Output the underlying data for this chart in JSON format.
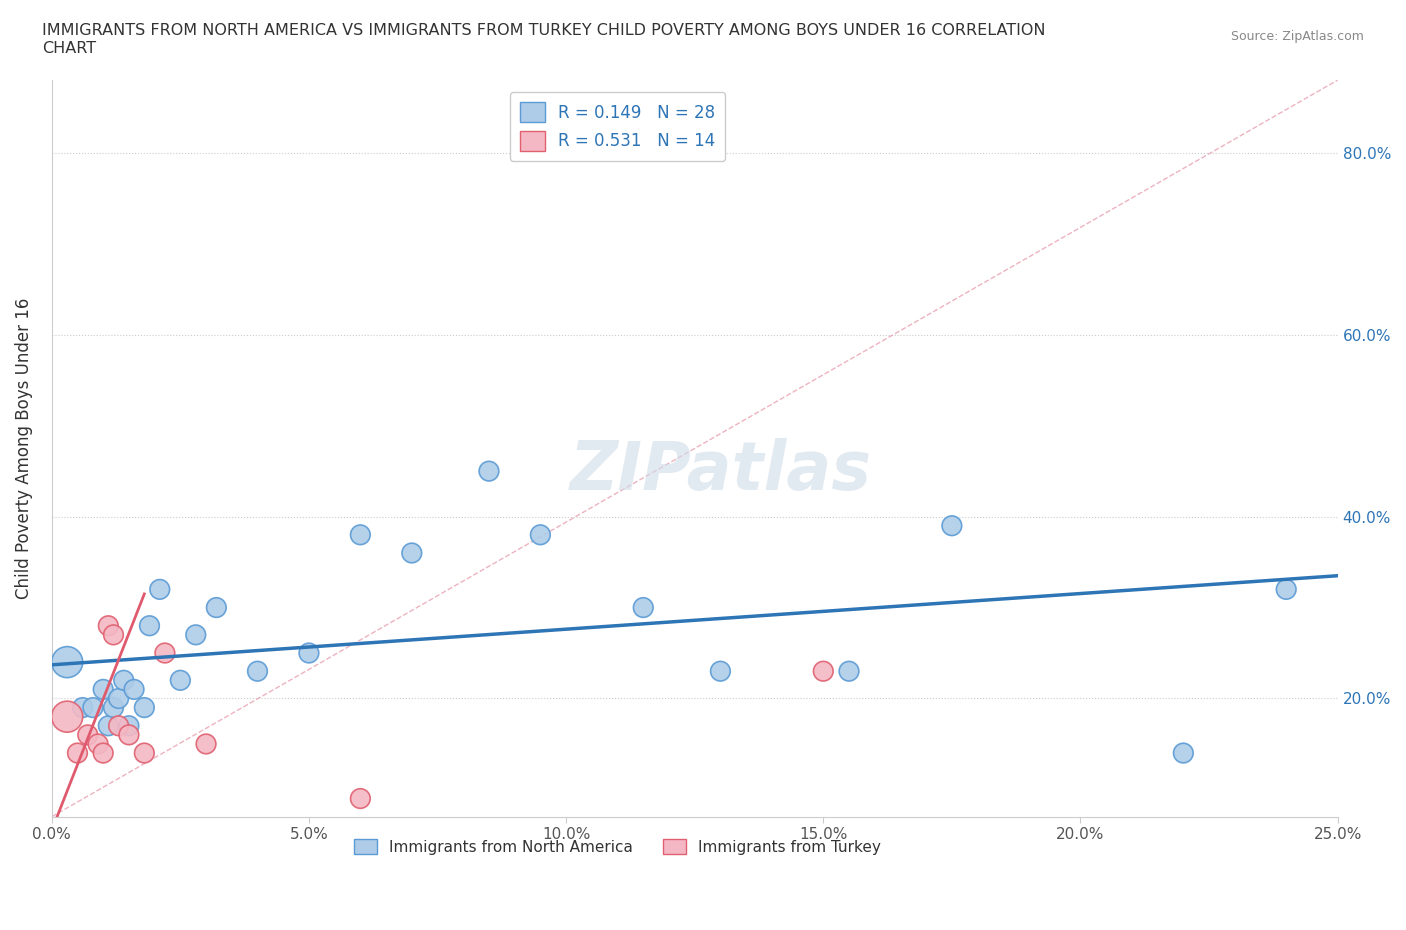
{
  "title": "IMMIGRANTS FROM NORTH AMERICA VS IMMIGRANTS FROM TURKEY CHILD POVERTY AMONG BOYS UNDER 16 CORRELATION\nCHART",
  "source": "Source: ZipAtlas.com",
  "ylabel": "Child Poverty Among Boys Under 16",
  "xlim": [
    0.0,
    0.25
  ],
  "ylim": [
    0.07,
    0.88
  ],
  "x_ticks": [
    0.0,
    0.05,
    0.1,
    0.15,
    0.2,
    0.25
  ],
  "x_tick_labels": [
    "0.0%",
    "5.0%",
    "10.0%",
    "15.0%",
    "20.0%",
    "25.0%"
  ],
  "y_ticks": [
    0.2,
    0.4,
    0.6,
    0.8
  ],
  "y_tick_labels": [
    "20.0%",
    "40.0%",
    "60.0%",
    "80.0%"
  ],
  "R_blue": 0.149,
  "N_blue": 28,
  "R_pink": 0.531,
  "N_pink": 14,
  "blue_color": "#aecce8",
  "blue_edge": "#5b9bd5",
  "pink_color": "#f4b8c4",
  "pink_edge": "#e06070",
  "blue_line_color": "#2e75b6",
  "pink_line_color": "#e05a6e",
  "diag_line_color": "#e8a0b0",
  "watermark_color": "#d0dce8",
  "blue_x": [
    0.003,
    0.006,
    0.008,
    0.01,
    0.011,
    0.012,
    0.013,
    0.014,
    0.015,
    0.016,
    0.018,
    0.019,
    0.021,
    0.025,
    0.028,
    0.032,
    0.04,
    0.05,
    0.06,
    0.07,
    0.085,
    0.095,
    0.115,
    0.13,
    0.155,
    0.175,
    0.22,
    0.24
  ],
  "blue_y": [
    0.24,
    0.19,
    0.19,
    0.21,
    0.17,
    0.19,
    0.2,
    0.22,
    0.17,
    0.21,
    0.19,
    0.28,
    0.32,
    0.22,
    0.27,
    0.3,
    0.23,
    0.25,
    0.38,
    0.36,
    0.45,
    0.38,
    0.3,
    0.23,
    0.23,
    0.39,
    0.14,
    0.32
  ],
  "blue_sizes": [
    500,
    200,
    200,
    200,
    200,
    200,
    200,
    200,
    200,
    200,
    200,
    200,
    200,
    200,
    200,
    200,
    200,
    200,
    200,
    200,
    200,
    200,
    200,
    200,
    200,
    200,
    200,
    200
  ],
  "pink_x": [
    0.003,
    0.005,
    0.007,
    0.009,
    0.01,
    0.011,
    0.012,
    0.013,
    0.015,
    0.018,
    0.022,
    0.03,
    0.15,
    0.06
  ],
  "pink_y": [
    0.18,
    0.14,
    0.16,
    0.15,
    0.14,
    0.28,
    0.27,
    0.17,
    0.16,
    0.14,
    0.25,
    0.15,
    0.23,
    0.09
  ],
  "pink_sizes": [
    500,
    200,
    200,
    200,
    200,
    200,
    200,
    200,
    200,
    200,
    200,
    200,
    200,
    200
  ],
  "blue_trendline_x0": 0.0,
  "blue_trendline_y0": 0.237,
  "blue_trendline_x1": 0.25,
  "blue_trendline_y1": 0.335,
  "pink_trendline_x0": 0.0,
  "pink_trendline_y0": 0.055,
  "pink_trendline_x1": 0.018,
  "pink_trendline_y1": 0.315
}
